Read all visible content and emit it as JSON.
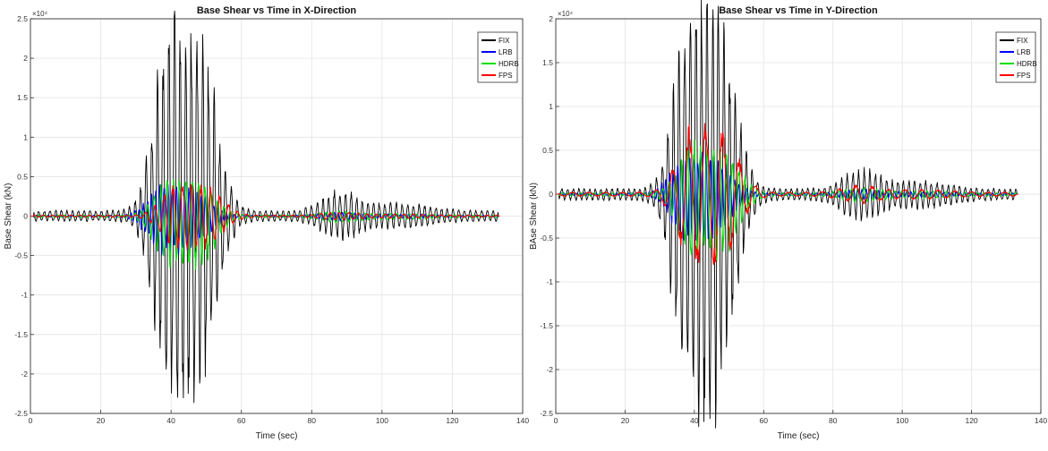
{
  "chart_data": [
    {
      "type": "line",
      "title": "Base Shear vs Time in X-Direction",
      "xlabel": "Time (sec)",
      "ylabel": "Base Shear (kN)",
      "y_exponent_label": "×10⁴",
      "xlim": [
        0,
        140
      ],
      "ylim": [
        -2.5,
        2.5
      ],
      "x_ticks": [
        0,
        20,
        40,
        60,
        80,
        100,
        120,
        140
      ],
      "y_ticks": [
        -2.5,
        -2,
        -1.5,
        -1,
        -0.5,
        0,
        0.5,
        1,
        1.5,
        2,
        2.5
      ],
      "grid": true,
      "legend_position": "top-right",
      "series": [
        {
          "name": "FIX",
          "color": "#000000",
          "peak": 2.22,
          "trough": -2.06,
          "peak_t": 44
        },
        {
          "name": "LRB",
          "color": "#0000ff",
          "peak": 0.35,
          "trough": -0.4,
          "peak_t": 42
        },
        {
          "name": "HDRB",
          "color": "#00dd00",
          "peak": 0.42,
          "trough": -0.58,
          "peak_t": 44
        },
        {
          "name": "FPS",
          "color": "#ff0000",
          "peak": 0.35,
          "trough": -0.35,
          "peak_t": 46
        }
      ]
    },
    {
      "type": "line",
      "title": "Base Shear vs Time in Y-Direction",
      "xlabel": "Time (sec)",
      "ylabel": "BAse Shear (kN)",
      "y_exponent_label": "×10⁴",
      "xlim": [
        0,
        140
      ],
      "ylim": [
        -2.5,
        2
      ],
      "x_ticks": [
        0,
        20,
        40,
        60,
        80,
        100,
        120,
        140
      ],
      "y_ticks": [
        -2.5,
        -2,
        -1.5,
        -1,
        -0.5,
        0,
        0.5,
        1,
        1.5,
        2
      ],
      "grid": true,
      "legend_position": "top-right",
      "series": [
        {
          "name": "FIX",
          "color": "#000000",
          "peak": 1.95,
          "trough": -2.18,
          "peak_t": 43
        },
        {
          "name": "LRB",
          "color": "#0000ff",
          "peak": 0.4,
          "trough": -0.45,
          "peak_t": 42
        },
        {
          "name": "HDRB",
          "color": "#00dd00",
          "peak": 0.5,
          "trough": -0.65,
          "peak_t": 44
        },
        {
          "name": "FPS",
          "color": "#ff0000",
          "peak": 0.7,
          "trough": -0.7,
          "peak_t": 44
        }
      ]
    }
  ]
}
